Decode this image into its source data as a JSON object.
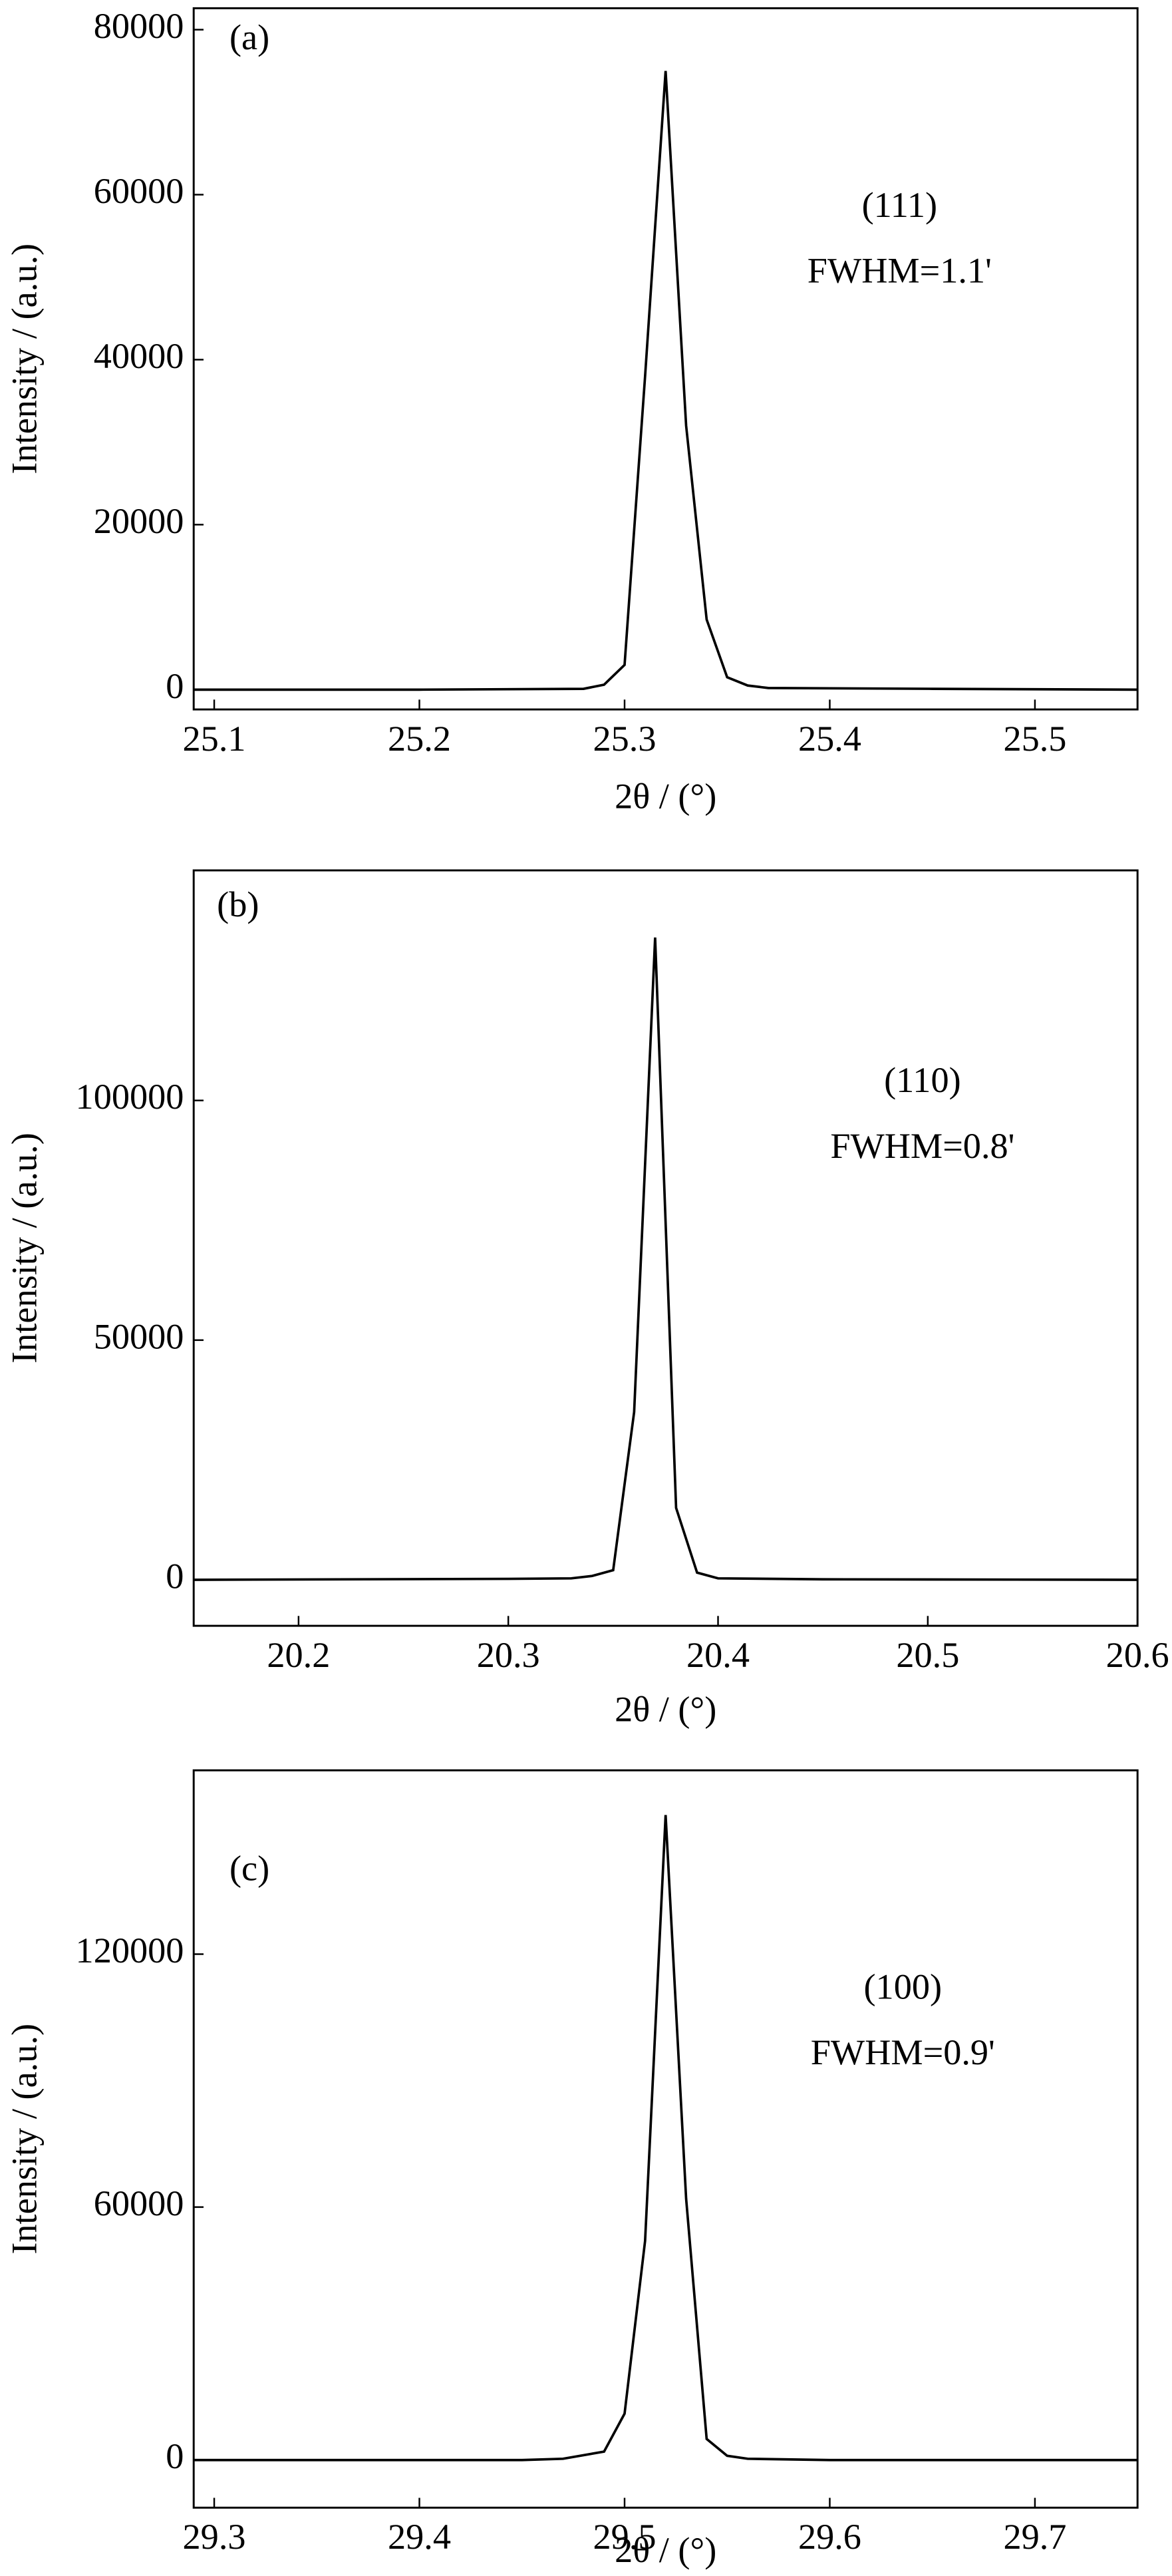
{
  "chart_data": [
    {
      "type": "line",
      "panel": "(a)",
      "annotations": [
        "(111)",
        "FWHM=1.1'"
      ],
      "xlabel": "2θ / (°)",
      "ylabel": "Intensity / (a.u.)",
      "x": [
        25.09,
        25.2,
        25.28,
        25.29,
        25.3,
        25.31,
        25.32,
        25.33,
        25.34,
        25.35,
        25.36,
        25.37,
        25.45,
        25.55
      ],
      "values": [
        0,
        0,
        100,
        600,
        3000,
        38000,
        75000,
        32000,
        8500,
        1500,
        500,
        200,
        100,
        0
      ],
      "color": "#000000",
      "xlim": [
        25.09,
        25.55
      ],
      "ylim": [
        -2400,
        82600
      ],
      "xticks": [
        25.1,
        25.2,
        25.3,
        25.4,
        25.5
      ],
      "yticks": [
        0,
        20000,
        40000,
        60000,
        80000
      ]
    },
    {
      "type": "line",
      "panel": "(b)",
      "annotations": [
        "(110)",
        "FWHM=0.8'"
      ],
      "xlabel": "2θ / (°)",
      "ylabel": "Intensity / (a.u.)",
      "x": [
        20.15,
        20.3,
        20.33,
        20.34,
        20.35,
        20.36,
        20.37,
        20.38,
        20.39,
        20.4,
        20.45,
        20.6
      ],
      "values": [
        0,
        200,
        300,
        800,
        2000,
        35000,
        134000,
        15000,
        1500,
        300,
        100,
        0
      ],
      "color": "#000000",
      "xlim": [
        20.15,
        20.6
      ],
      "ylim": [
        -9600,
        148000
      ],
      "xticks": [
        20.2,
        20.3,
        20.4,
        20.5,
        20.6
      ],
      "yticks": [
        0,
        50000,
        100000
      ]
    },
    {
      "type": "line",
      "panel": "(c)",
      "annotations": [
        "(100)",
        "FWHM=0.9'"
      ],
      "xlabel": "2θ / (°)",
      "ylabel": "Intensity / (a.u.)",
      "x": [
        29.29,
        29.45,
        29.47,
        29.49,
        29.5,
        29.51,
        29.52,
        29.53,
        29.54,
        29.55,
        29.56,
        29.6,
        29.75
      ],
      "values": [
        0,
        0,
        300,
        2000,
        11000,
        52000,
        153000,
        62000,
        5000,
        1000,
        300,
        0,
        0
      ],
      "color": "#000000",
      "xlim": [
        29.29,
        29.75
      ],
      "ylim": [
        -11300,
        163600
      ],
      "xticks": [
        29.3,
        29.4,
        29.5,
        29.6,
        29.7
      ],
      "yticks": [
        0,
        60000,
        120000
      ]
    }
  ]
}
